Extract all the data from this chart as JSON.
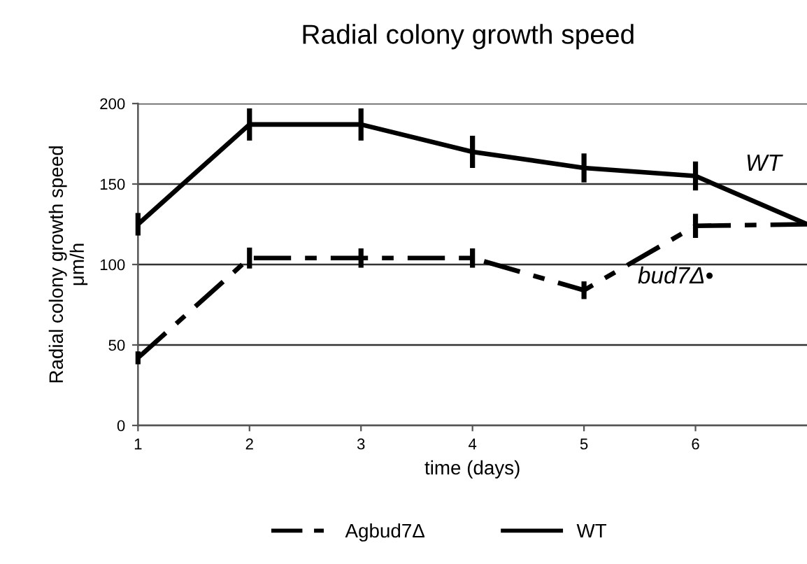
{
  "chart_data": {
    "type": "line",
    "title": "Radial colony growth speed",
    "xlabel": "time (days)",
    "ylabel": "Radial colony growth speed\nμm/h",
    "x": [
      1,
      2,
      3,
      4,
      5,
      6,
      7
    ],
    "series": [
      {
        "name": "Agbud7Δ",
        "color": "#000000",
        "line_style": "dashed",
        "values": [
          42,
          104,
          104,
          104,
          84,
          124,
          125
        ],
        "errors": [
          4,
          6.5,
          6,
          6,
          5.5,
          7.5,
          null
        ]
      },
      {
        "name": "WT",
        "color": "#000000",
        "line_style": "solid",
        "values": [
          125,
          187,
          187,
          170,
          160,
          155,
          125
        ],
        "errors": [
          7,
          10,
          10,
          10,
          9,
          9,
          null
        ]
      }
    ],
    "xlim": [
      1,
      7
    ],
    "xticks": [
      1,
      2,
      3,
      4,
      5,
      6
    ],
    "ylim": [
      0,
      200
    ],
    "yticks": [
      0,
      50,
      100,
      150,
      200
    ],
    "grid": "y",
    "legend": "bottom",
    "marker": "none",
    "annotations": [
      "WT",
      "bud7Δ•"
    ]
  }
}
